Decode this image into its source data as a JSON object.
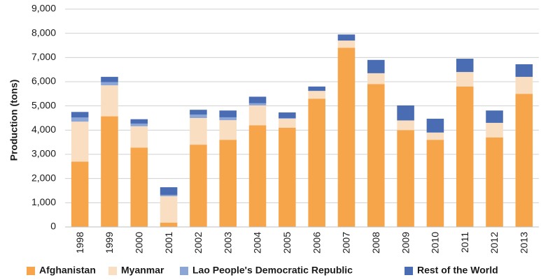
{
  "chart_data": {
    "type": "bar",
    "stacked": true,
    "title": "",
    "xlabel": "",
    "ylabel": "Production (tons)",
    "ylim": [
      0,
      9000
    ],
    "yticks": [
      0,
      1000,
      2000,
      3000,
      4000,
      5000,
      6000,
      7000,
      8000,
      9000
    ],
    "ytick_labels": [
      "0",
      "1,000",
      "2,000",
      "3,000",
      "4,000",
      "5,000",
      "6,000",
      "7,000",
      "8,000",
      "9,000"
    ],
    "grid": true,
    "legend_position": "bottom",
    "categories": [
      "1998",
      "1999",
      "2000",
      "2001",
      "2002",
      "2003",
      "2004",
      "2005",
      "2006",
      "2007",
      "2008",
      "2009",
      "2010",
      "2011",
      "2012",
      "2013"
    ],
    "series": [
      {
        "name": "Afghanistan",
        "color": "#F7A54A",
        "values": [
          2700,
          4570,
          3280,
          180,
          3400,
          3600,
          4200,
          4100,
          5300,
          7400,
          5900,
          4000,
          3600,
          5800,
          3700,
          5500
        ]
      },
      {
        "name": "Myanmar",
        "color": "#F9DEC2",
        "values": [
          1650,
          1280,
          880,
          1090,
          1100,
          810,
          820,
          370,
          320,
          300,
          450,
          400,
          300,
          600,
          600,
          700
        ]
      },
      {
        "name": "Lao People's Democratic Republic",
        "color": "#8AA5D6",
        "values": [
          170,
          130,
          110,
          50,
          140,
          120,
          90,
          30,
          0,
          0,
          0,
          0,
          0,
          0,
          0,
          0
        ]
      },
      {
        "name": "Rest of the World",
        "color": "#4A6CB3",
        "values": [
          230,
          220,
          180,
          320,
          200,
          280,
          270,
          230,
          180,
          250,
          550,
          620,
          570,
          550,
          510,
          520
        ]
      }
    ]
  }
}
